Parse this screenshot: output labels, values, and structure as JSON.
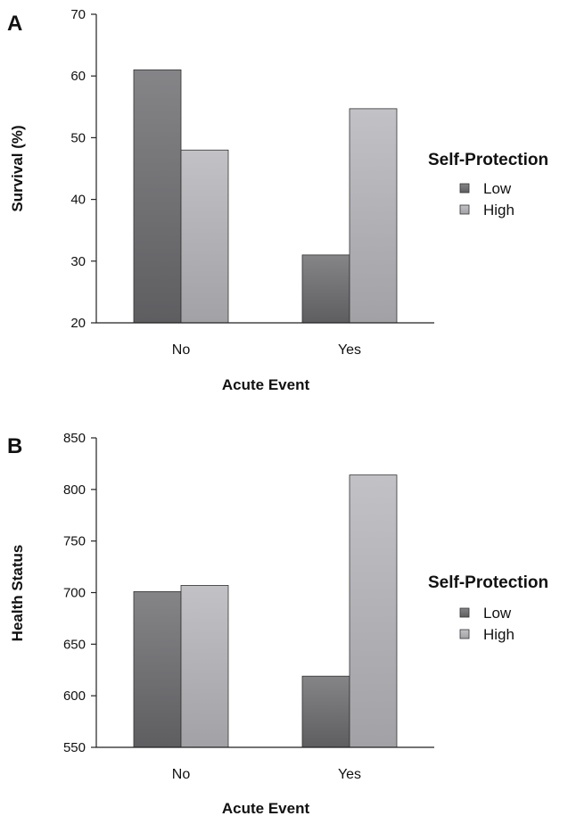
{
  "chart_data": [
    {
      "type": "bar",
      "panel": "A",
      "xlabel": "Acute Event",
      "ylabel": "Survival (%)",
      "categories": [
        "No",
        "Yes"
      ],
      "ylim": [
        20,
        70
      ],
      "yticks": [
        20,
        30,
        40,
        50,
        60,
        70
      ],
      "legend_title": "Self-Protection",
      "series": [
        {
          "name": "Low",
          "values": [
            61,
            31
          ],
          "color": "#6e6e70"
        },
        {
          "name": "High",
          "values": [
            48,
            54.7
          ],
          "color": "#b4b4b8"
        }
      ]
    },
    {
      "type": "bar",
      "panel": "B",
      "xlabel": "Acute Event",
      "ylabel": "Health Status",
      "categories": [
        "No",
        "Yes"
      ],
      "ylim": [
        550,
        850
      ],
      "yticks": [
        550,
        600,
        650,
        700,
        750,
        800,
        850
      ],
      "legend_title": "Self-Protection",
      "series": [
        {
          "name": "Low",
          "values": [
            701,
            619
          ],
          "color": "#6e6e70"
        },
        {
          "name": "High",
          "values": [
            707,
            814
          ],
          "color": "#b4b4b8"
        }
      ]
    }
  ]
}
